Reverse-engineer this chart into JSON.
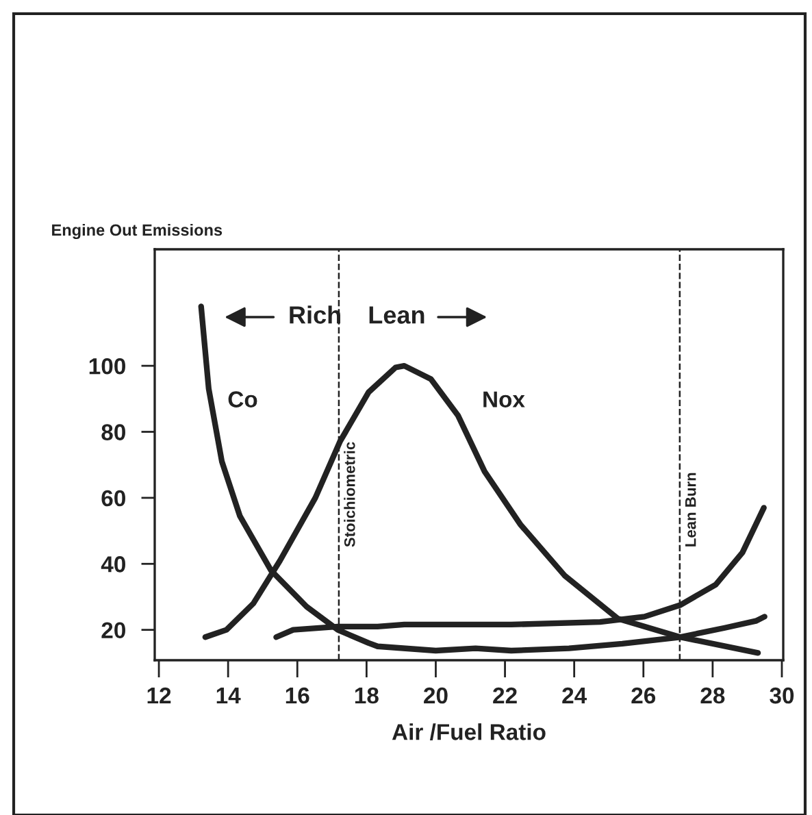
{
  "chart_data": {
    "type": "line",
    "ylabel": "Engine Out Emissions",
    "xlabel": "Air /Fuel Ratio",
    "x": [
      13.22,
      13.44,
      13.82,
      14.34,
      15.24,
      16.27,
      17.17,
      18.06,
      18.32,
      20.0,
      21.15,
      22.18,
      23.85,
      25.39,
      27.06,
      28.35,
      29.25,
      29.5
    ],
    "series": [
      {
        "color": "#222222",
        "values": [
          118,
          93,
          71,
          54.5,
          38,
          27,
          20,
          16,
          15,
          13.7,
          14.4,
          13.7,
          14.4,
          15.8,
          17.8,
          20.6,
          22.7,
          24
        ]
      },
      {
        "color": "#222222",
        "x": [
          13.34,
          13.95,
          14.73,
          15.5,
          16.52,
          17.23,
          18.06,
          18.84,
          19.09,
          19.86,
          20.64,
          21.41,
          22.44,
          23.72,
          25.26,
          27.06,
          29.31
        ],
        "values": [
          17.8,
          20,
          28,
          41,
          60,
          77,
          92,
          99.5,
          100,
          96,
          85,
          68,
          52,
          36.5,
          23.4,
          17.8,
          13
        ]
      },
      {
        "color": "#222222",
        "x": [
          15.39,
          15.88,
          17.17,
          18.32,
          19.09,
          22.18,
          24.75,
          26.03,
          27.06,
          28.09,
          28.86,
          29.48
        ],
        "values": [
          17.8,
          20,
          21,
          21,
          21.6,
          21.6,
          22.4,
          24,
          27.5,
          33.7,
          43.4,
          57
        ]
      }
    ],
    "xlim": [
      11.88,
      30.04
    ],
    "ylim": [
      10.8,
      135.3
    ],
    "xticks": [
      12,
      14,
      16,
      18,
      20,
      22,
      24,
      26,
      28,
      30
    ],
    "yticks": [
      20,
      40,
      60,
      80,
      100
    ],
    "ref_lines": [
      {
        "axis": "x",
        "value": 17.2,
        "label": "Stoichiometric",
        "line_style": "dashed",
        "color": "#222222"
      },
      {
        "axis": "x",
        "value": 27.05,
        "label": "Lean Burn",
        "line_style": "dashed",
        "color": "#222222"
      }
    ],
    "annotations": [
      "Rich",
      "Lean",
      "Co",
      "Nox"
    ],
    "grid": false,
    "legend": false,
    "marker": "none",
    "line_style": "solid"
  }
}
